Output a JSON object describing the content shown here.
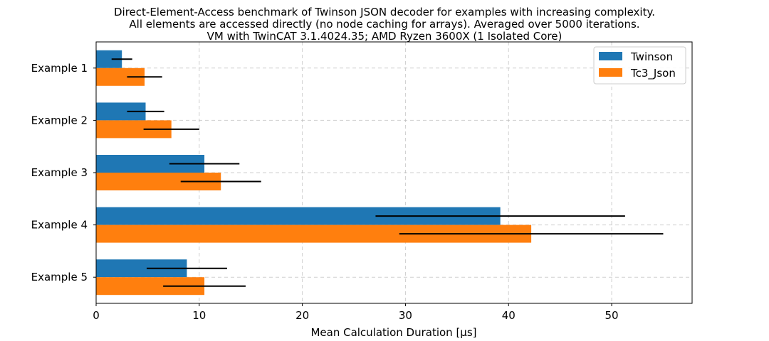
{
  "chart_data": {
    "type": "bar",
    "orientation": "horizontal",
    "title_lines": [
      "Direct-Element-Access benchmark of Twinson JSON decoder for examples with increasing complexity.",
      "All elements are accessed directly (no node caching for arrays). Averaged over 5000 iterations.",
      "VM with TwinCAT 3.1.4024.35; AMD Ryzen 3600X (1 Isolated Core)"
    ],
    "xlabel": "Mean Calculation Duration [µs]",
    "ylabel": "",
    "xlim": [
      0,
      57.8
    ],
    "xticks": [
      0,
      10,
      20,
      30,
      40,
      50
    ],
    "categories": [
      "Example 1",
      "Example 2",
      "Example 3",
      "Example 4",
      "Example 5"
    ],
    "series": [
      {
        "name": "Twinson",
        "color": "#1f77b4",
        "values": [
          2.5,
          4.8,
          10.5,
          39.2,
          8.8
        ],
        "error": [
          1.0,
          1.8,
          3.4,
          12.1,
          3.9
        ]
      },
      {
        "name": "Tc3_Json",
        "color": "#ff7f0e",
        "values": [
          4.7,
          7.3,
          12.1,
          42.2,
          10.5
        ],
        "error": [
          1.7,
          2.7,
          3.9,
          12.8,
          4.0
        ]
      }
    ],
    "error_color": "#000000",
    "grid": true,
    "legend_position": "top-right"
  }
}
